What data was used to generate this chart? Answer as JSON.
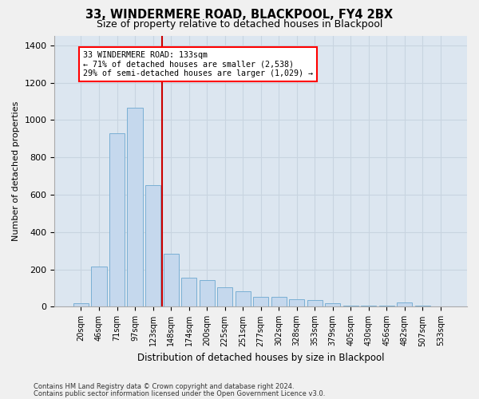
{
  "title": "33, WINDERMERE ROAD, BLACKPOOL, FY4 2BX",
  "subtitle": "Size of property relative to detached houses in Blackpool",
  "xlabel": "Distribution of detached houses by size in Blackpool",
  "ylabel": "Number of detached properties",
  "categories": [
    "20sqm",
    "46sqm",
    "71sqm",
    "97sqm",
    "123sqm",
    "148sqm",
    "174sqm",
    "200sqm",
    "225sqm",
    "251sqm",
    "277sqm",
    "302sqm",
    "328sqm",
    "353sqm",
    "379sqm",
    "405sqm",
    "430sqm",
    "456sqm",
    "482sqm",
    "507sqm",
    "533sqm"
  ],
  "values": [
    18,
    215,
    930,
    1065,
    650,
    285,
    155,
    145,
    105,
    85,
    55,
    55,
    40,
    35,
    20,
    8,
    5,
    5,
    25,
    5,
    3
  ],
  "bar_color": "#c5d8ed",
  "bar_edge_color": "#7aafd4",
  "grid_color": "#c8d4e0",
  "background_color": "#dce6f0",
  "figure_background": "#f0f0f0",
  "annotation_line1": "33 WINDERMERE ROAD: 133sqm",
  "annotation_line2": "← 71% of detached houses are smaller (2,538)",
  "annotation_line3": "29% of semi-detached houses are larger (1,029) →",
  "vline_color": "#cc0000",
  "ylim": [
    0,
    1450
  ],
  "yticks": [
    0,
    200,
    400,
    600,
    800,
    1000,
    1200,
    1400
  ],
  "footnote1": "Contains HM Land Registry data © Crown copyright and database right 2024.",
  "footnote2": "Contains public sector information licensed under the Open Government Licence v3.0."
}
